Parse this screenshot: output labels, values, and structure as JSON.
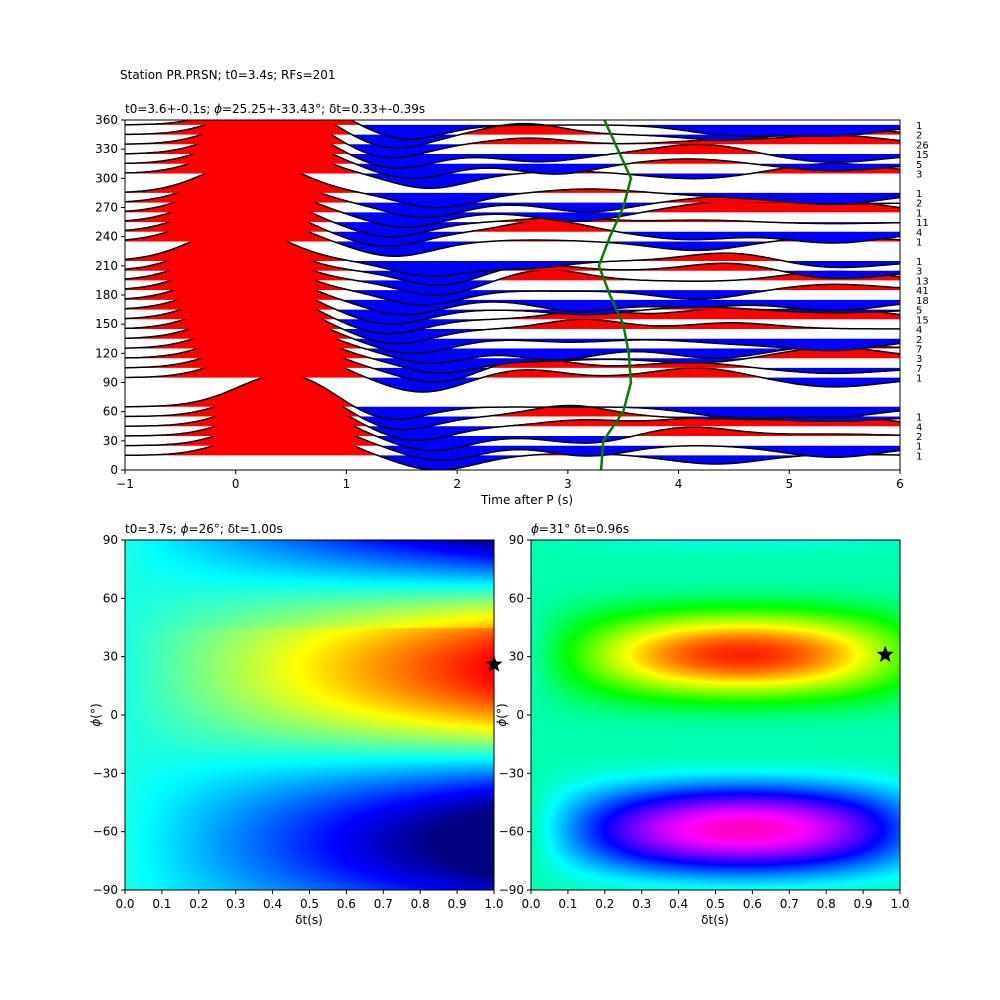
{
  "figure": {
    "suptitle": "Station PR.PRSN; t0=3.4s; RFs=201"
  },
  "colors": {
    "positive": "#ff0000",
    "negative": "#0000ff",
    "trace": "#000000",
    "t0_curve": "#008000",
    "star": "#000000"
  },
  "chart_data": [
    {
      "type": "line",
      "name": "stacked-receiver-functions",
      "title": "t0=3.6+-0.1s; ϕ=25.25+-33.43°; δt=0.33+-0.39s",
      "xlabel": "Time after P (s)",
      "ylabel": "",
      "xlim": [
        -1,
        6
      ],
      "ylim": [
        0,
        360
      ],
      "xticks": [
        "−1",
        "0",
        "1",
        "2",
        "3",
        "4",
        "5",
        "6"
      ],
      "yticks": [
        "0",
        "30",
        "60",
        "90",
        "120",
        "150",
        "180",
        "210",
        "240",
        "270",
        "300",
        "330",
        "360"
      ],
      "backazimuths": [
        15,
        25,
        35,
        45,
        55,
        65,
        95,
        105,
        115,
        125,
        135,
        145,
        155,
        165,
        175,
        185,
        195,
        205,
        215,
        235,
        245,
        255,
        265,
        275,
        285,
        305,
        315,
        325,
        335,
        345,
        355
      ],
      "counts": [
        "1",
        "1",
        "2",
        "4",
        "1",
        "",
        "1",
        "7",
        "3",
        "7",
        "2",
        "4",
        "15",
        "5",
        "18",
        "41",
        "13",
        "3",
        "1",
        "1",
        "4",
        "11",
        "1",
        "2",
        "1",
        "3",
        "5",
        "15",
        "26",
        "2",
        "1"
      ],
      "t0_curve": {
        "baz": [
          0,
          30,
          60,
          90,
          120,
          150,
          180,
          210,
          240,
          270,
          300,
          330,
          360
        ],
        "t": [
          3.3,
          3.32,
          3.5,
          3.57,
          3.55,
          3.5,
          3.38,
          3.28,
          3.38,
          3.5,
          3.57,
          3.45,
          3.33
        ]
      }
    },
    {
      "type": "heatmap",
      "name": "grid-search-left",
      "title": "t0=3.7s; ϕ=26°; δt=1.00s",
      "xlabel": "δt(s)",
      "ylabel": "ϕ(°)",
      "xlim": [
        0,
        1
      ],
      "ylim": [
        -90,
        90
      ],
      "xticks": [
        "0.0",
        "0.1",
        "0.2",
        "0.3",
        "0.4",
        "0.5",
        "0.6",
        "0.7",
        "0.8",
        "0.9",
        "1.0"
      ],
      "yticks": [
        "−90",
        "−60",
        "−30",
        "0",
        "30",
        "60",
        "90"
      ],
      "colormap": "jet",
      "best": {
        "dt": 1.0,
        "phi": 26
      }
    },
    {
      "type": "heatmap",
      "name": "grid-search-right",
      "title": "ϕ=31° δt=0.96s",
      "xlabel": "δt(s)",
      "ylabel": "ϕ(°)",
      "xlim": [
        0,
        1
      ],
      "ylim": [
        -90,
        90
      ],
      "xticks": [
        "0.0",
        "0.1",
        "0.2",
        "0.3",
        "0.4",
        "0.5",
        "0.6",
        "0.7",
        "0.8",
        "0.9",
        "1.0"
      ],
      "yticks": [
        "−90",
        "−60",
        "−30",
        "0",
        "30",
        "60",
        "90"
      ],
      "colormap": "hsv",
      "best": {
        "dt": 0.96,
        "phi": 31
      }
    }
  ]
}
